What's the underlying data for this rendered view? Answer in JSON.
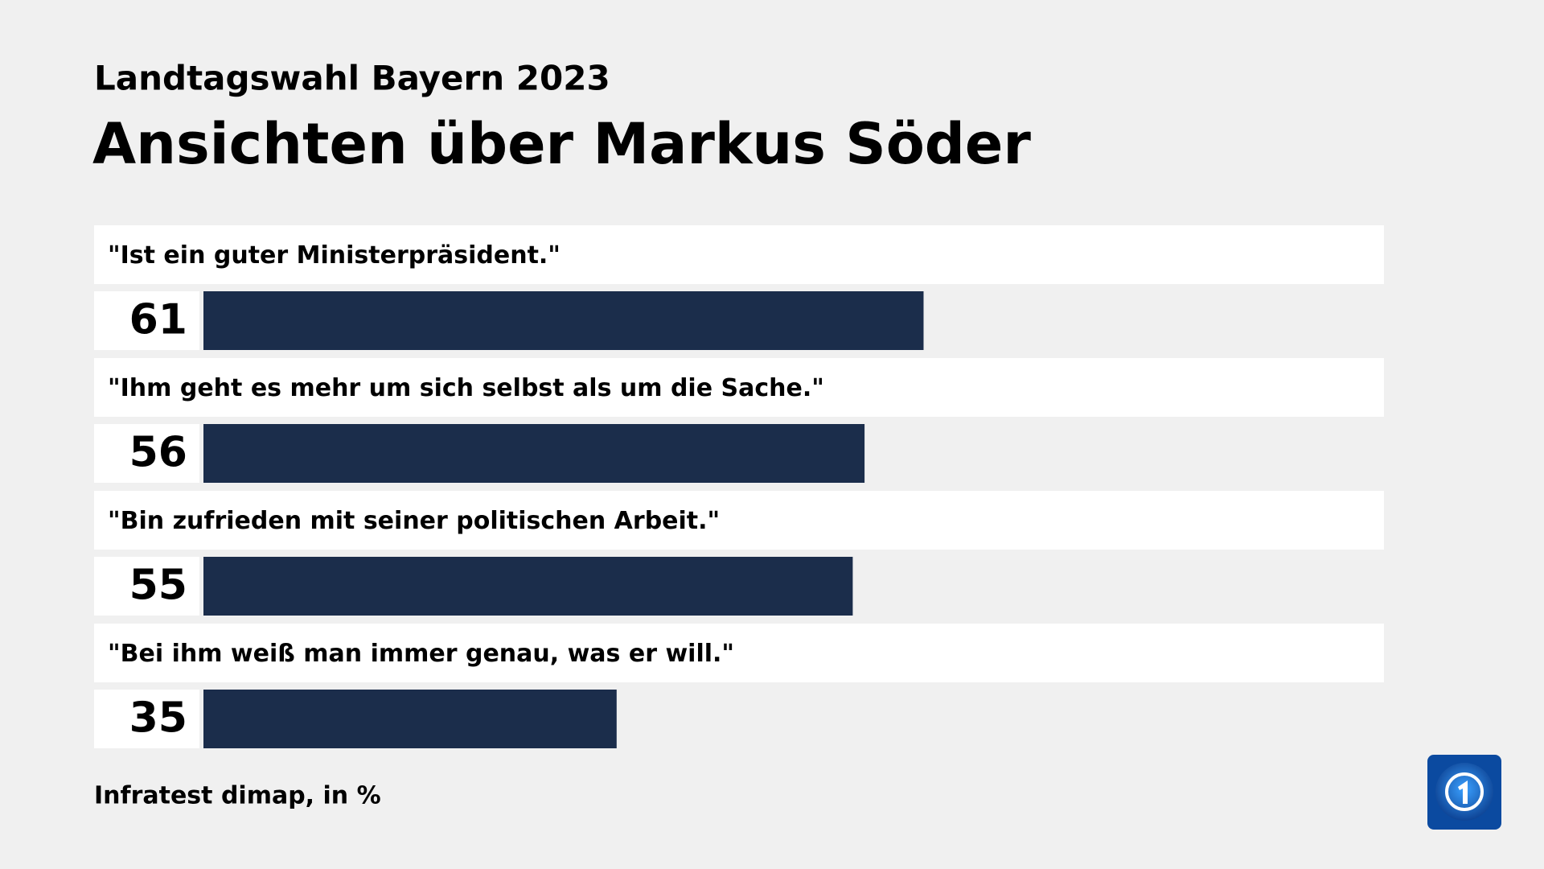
{
  "chart_data": {
    "type": "bar",
    "subtitle": "Landtagswahl Bayern 2023",
    "title": "Ansichten über Markus Söder",
    "categories": [
      "\"Ist ein guter Ministerpräsident.\"",
      "\"Ihm geht es mehr um sich selbst als um die Sache.\"",
      "\"Bin zufrieden mit seiner politischen Arbeit.\"",
      "\"Bei ihm weiß man immer genau, was er will.\""
    ],
    "values": [
      61,
      56,
      55,
      35
    ],
    "color": "#1b2d4b",
    "xlim": [
      0,
      100
    ],
    "source": "Infratest dimap, in %"
  }
}
